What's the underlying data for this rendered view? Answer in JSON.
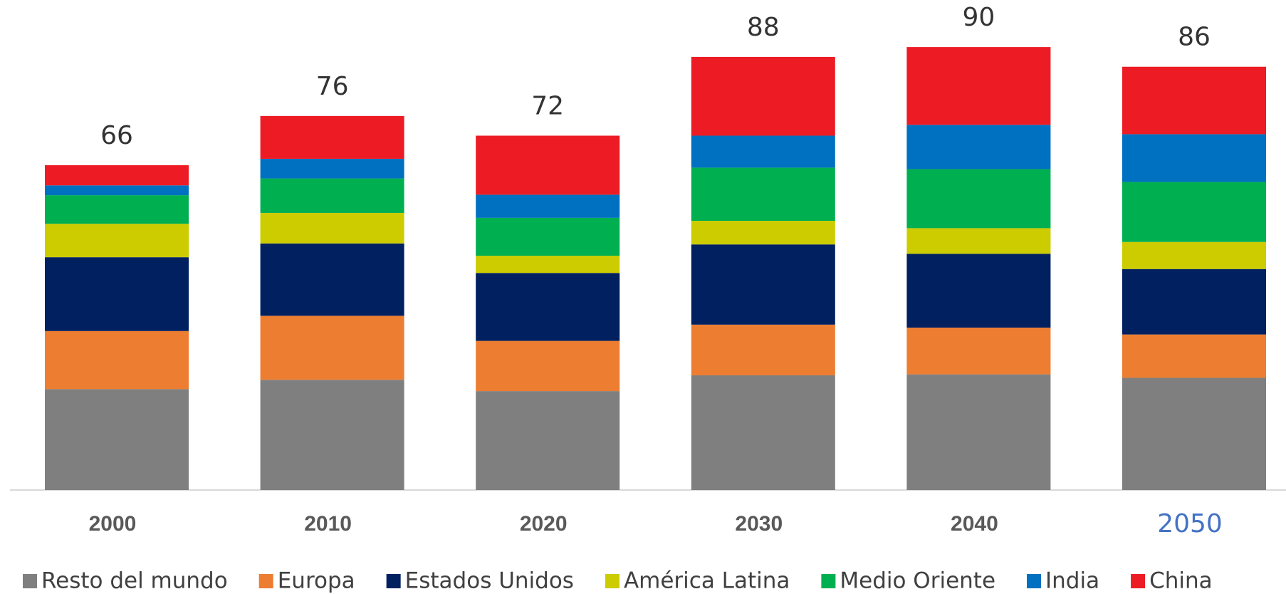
{
  "chart_data": {
    "type": "stacked_bar",
    "categories": [
      "2000",
      "2010",
      "2020",
      "2030",
      "2040",
      "2050"
    ],
    "series": [
      {
        "name": "Resto del mundo",
        "color": "#7f7f7f",
        "values": [
          20.5,
          22.4,
          20.1,
          23.3,
          23.5,
          22.8
        ]
      },
      {
        "name": "Europa",
        "color": "#ed7d31",
        "values": [
          11.8,
          13,
          10.2,
          10.3,
          9.5,
          8.8
        ]
      },
      {
        "name": "Estados Unidos",
        "color": "#002060",
        "values": [
          15,
          14.7,
          13.8,
          16.3,
          15,
          13.3
        ]
      },
      {
        "name": "América Latina",
        "color": "#cccc00",
        "values": [
          6.8,
          6.2,
          3.5,
          4.8,
          5.2,
          5.5
        ]
      },
      {
        "name": "Medio Oriente",
        "color": "#00b050",
        "values": [
          5.8,
          7,
          7.7,
          10.8,
          12,
          12.2
        ]
      },
      {
        "name": "India",
        "color": "#0070c0",
        "values": [
          2,
          4,
          4.7,
          6.5,
          9,
          9.7
        ]
      },
      {
        "name": "China",
        "color": "#ed1c24",
        "values": [
          4.1,
          8.7,
          12,
          16,
          15.8,
          13.7
        ]
      }
    ],
    "totals": [
      66,
      76,
      72,
      88,
      90,
      86
    ],
    "legend": "bottom"
  }
}
